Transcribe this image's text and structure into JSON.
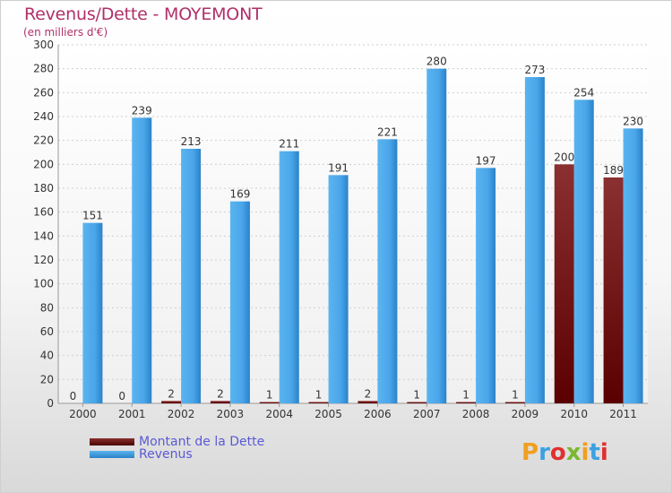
{
  "header": {
    "title": "Revenus/Dette - MOYEMONT",
    "subtitle": "(en milliers d'€)"
  },
  "chart_data": {
    "type": "bar",
    "categories": [
      "2000",
      "2001",
      "2002",
      "2003",
      "2004",
      "2005",
      "2006",
      "2007",
      "2008",
      "2009",
      "2010",
      "2011"
    ],
    "series": [
      {
        "name": "Montant de la Dette",
        "values": [
          0,
          0,
          2,
          2,
          1,
          1,
          2,
          1,
          1,
          1,
          200,
          189
        ],
        "color": "#7a1111"
      },
      {
        "name": "Revenus",
        "values": [
          151,
          239,
          213,
          169,
          211,
          191,
          221,
          280,
          197,
          273,
          254,
          230
        ],
        "color": "#3d9de3"
      }
    ],
    "ylim": [
      0,
      300
    ],
    "yticks": [
      0,
      20,
      40,
      60,
      80,
      100,
      120,
      140,
      160,
      180,
      200,
      220,
      240,
      260,
      280,
      300
    ],
    "grid": true,
    "legend_position": "bottom-left"
  },
  "legend": {
    "debt_label": "Montant de la Dette",
    "revenue_label": "Revenus"
  },
  "logo": {
    "letters": [
      "P",
      "r",
      "o",
      "x",
      "i",
      "t",
      "i"
    ],
    "colors": [
      "#f0a020",
      "#3da0e0",
      "#e03030",
      "#7ab830",
      "#f0a020",
      "#3da0e0",
      "#e03030"
    ]
  }
}
